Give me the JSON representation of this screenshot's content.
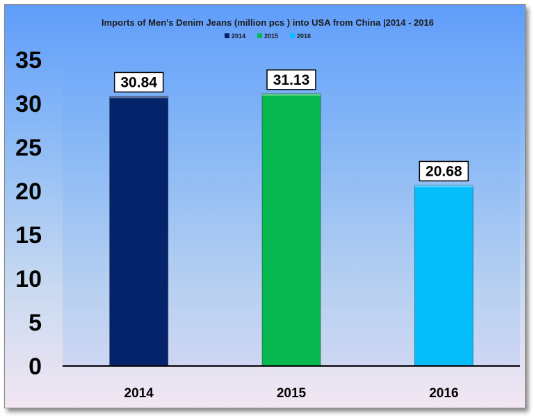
{
  "chart_data": {
    "type": "bar",
    "title": "Imports of Men's Denim Jeans (million pcs ) into USA from China |2014 - 2016",
    "categories": [
      "2014",
      "2015",
      "2016"
    ],
    "series": [
      {
        "name": "2014",
        "values": [
          30.84,
          null,
          null
        ],
        "color": "#04236a"
      },
      {
        "name": "2015",
        "values": [
          null,
          31.13,
          null
        ],
        "color": "#07b851"
      },
      {
        "name": "2016",
        "values": [
          null,
          null,
          20.68
        ],
        "color": "#05bdfb"
      }
    ],
    "values": [
      30.84,
      31.13,
      20.68
    ],
    "data_labels": [
      "30.84",
      "31.13",
      "20.68"
    ],
    "ylim": [
      0,
      35
    ],
    "yticks": [
      "0",
      "5",
      "10",
      "15",
      "20",
      "25",
      "30",
      "35"
    ],
    "xlabel": "",
    "ylabel": "",
    "legend": {
      "placement": "top",
      "entries": [
        "2014",
        "2015",
        "2016"
      ]
    },
    "grid": false
  },
  "colors": {
    "bar_2014": "#04236a",
    "bar_2015": "#07b851",
    "bar_2016": "#05bdfb",
    "plot_background_top": "#5f9dfb",
    "plot_background_bottom": "#f3e6f2"
  }
}
